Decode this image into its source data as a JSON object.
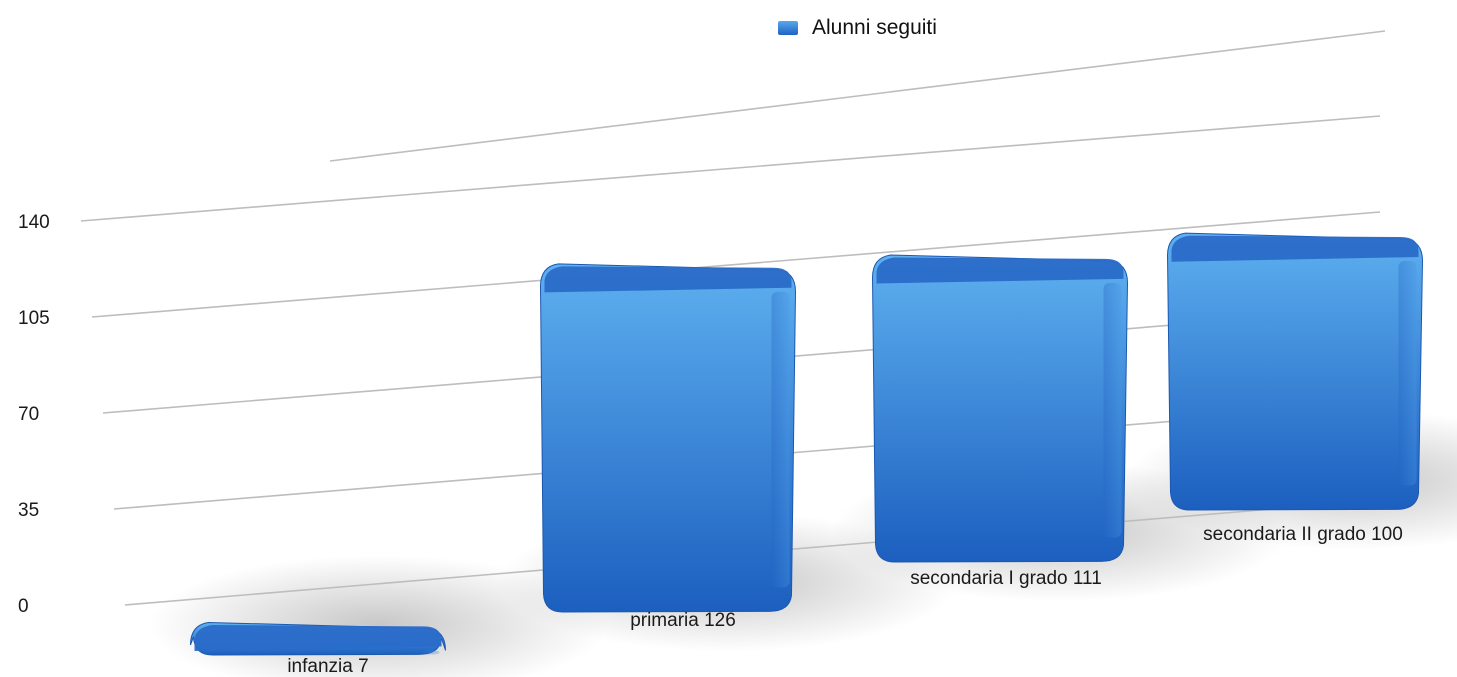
{
  "colors": {
    "bar_light": "#5eb0f0",
    "bar_dark": "#1c5fbf",
    "bar_top": "#2a6cc8",
    "grid": "#bdbdbd"
  },
  "legend": {
    "label": "Alunni seguiti",
    "icon": "legend-square-icon"
  },
  "chart_data": {
    "type": "bar",
    "title": "",
    "xlabel": "",
    "ylabel": "",
    "ylim": [
      0,
      140
    ],
    "yticks": [
      0,
      35,
      70,
      105,
      140
    ],
    "ytick_labels": [
      "0",
      "35",
      "70",
      "105",
      "140"
    ],
    "categories": [
      "infanzia",
      "primaria",
      "secondaria I grado",
      "secondaria II grado"
    ],
    "data_labels": [
      "infanzia 7",
      "primaria 126",
      "secondaria I grado 111",
      "secondaria II grado 100"
    ],
    "series": [
      {
        "name": "Alunni seguiti",
        "values": [
          7,
          126,
          111,
          100
        ]
      }
    ],
    "grid": true,
    "legend_position": "top-center",
    "style": "3d-perspective"
  }
}
